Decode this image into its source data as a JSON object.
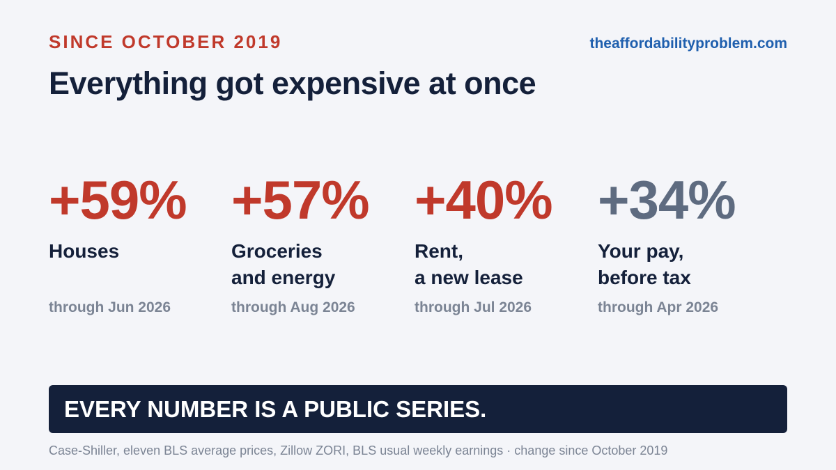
{
  "header": {
    "kicker": "SINCE OCTOBER 2019",
    "site": "theaffordabilityproblem.com",
    "headline": "Everything got expensive at once"
  },
  "stats": [
    {
      "value": "+59%",
      "label": "Houses",
      "period": "through Jun 2026",
      "color": "#c0392b"
    },
    {
      "value": "+57%",
      "label": "Groceries\nand energy",
      "period": "through Aug 2026",
      "color": "#c0392b"
    },
    {
      "value": "+40%",
      "label": "Rent,\na new lease",
      "period": "through Jul 2026",
      "color": "#c0392b"
    },
    {
      "value": "+34%",
      "label": "Your pay,\nbefore tax",
      "period": "through Apr 2026",
      "color": "#5e6b80"
    }
  ],
  "banner": {
    "text": "EVERY NUMBER IS A PUBLIC SERIES."
  },
  "footnote": "Case-Shiller, eleven BLS average prices, Zillow ZORI, BLS usual weekly earnings · change since October 2019",
  "colors": {
    "accent_red": "#c0392b",
    "link_blue": "#1f5fae",
    "navy": "#14203a",
    "muted_slate": "#5e6b80",
    "muted_text": "#7b8494",
    "background": "#f4f5f9"
  }
}
